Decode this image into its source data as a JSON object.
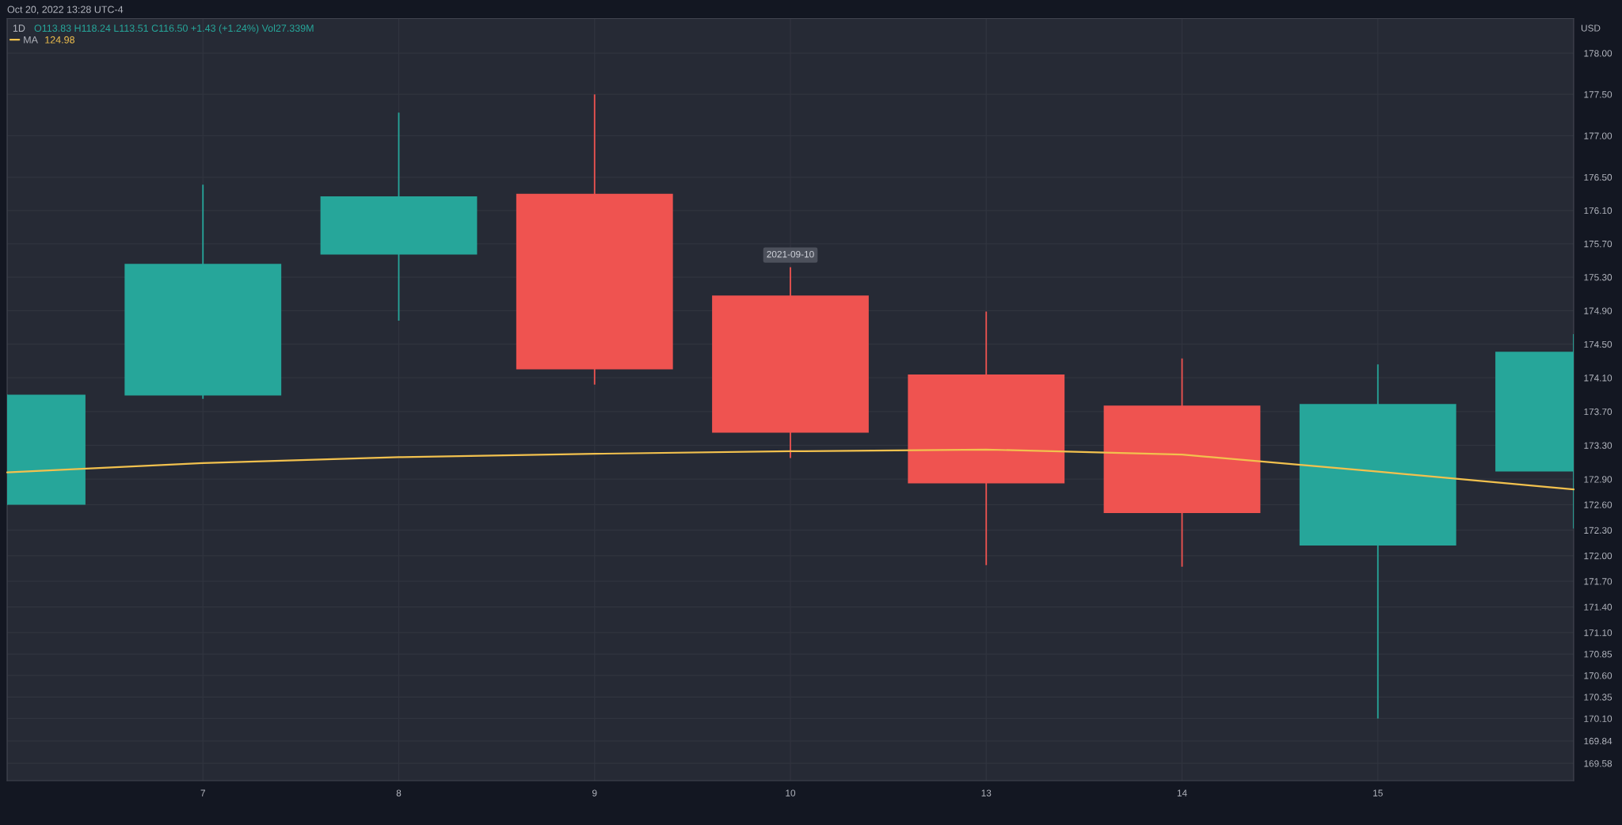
{
  "chart_data": {
    "type": "candlestick",
    "title": "1D",
    "subtitle": "O113.83 H118.24 L113.51 C116.50 +1.43 (+1.24%) Vol27.339M",
    "ylabel": "USD",
    "categories": [
      null,
      "7",
      "8",
      "9",
      "10",
      "13",
      "14",
      "15",
      null
    ],
    "ohlc": [
      [
        172.6,
        173.9,
        172.6,
        173.9
      ],
      [
        173.89,
        176.41,
        173.85,
        175.46
      ],
      [
        175.57,
        177.28,
        174.78,
        176.27
      ],
      [
        176.3,
        177.5,
        174.02,
        174.2
      ],
      [
        175.08,
        175.42,
        173.15,
        173.45
      ],
      [
        174.14,
        174.89,
        171.89,
        172.85
      ],
      [
        173.77,
        174.33,
        171.87,
        172.5
      ],
      [
        172.12,
        174.26,
        170.1,
        173.79
      ],
      [
        172.99,
        174.62,
        172.32,
        174.41
      ]
    ],
    "colors": [
      "#26a69a",
      "#26a69a",
      "#26a69a",
      "#ef5350",
      "#ef5350",
      "#ef5350",
      "#ef5350",
      "#26a69a",
      "#26a69a"
    ],
    "series": [
      {
        "name": "MA",
        "type": "line",
        "color": "#f2c14e",
        "values": [
          172.98,
          173.09,
          173.16,
          173.2,
          173.23,
          173.25,
          173.19,
          172.99,
          172.78
        ]
      }
    ],
    "ylim": [
      169.38,
      178.42
    ],
    "yticks": [
      {
        "value": 169.58,
        "label": "169.58"
      },
      {
        "value": 169.84,
        "label": "169.84"
      },
      {
        "value": 170.1,
        "label": "170.10"
      },
      {
        "value": 170.35,
        "label": "170.35"
      },
      {
        "value": 170.6,
        "label": "170.60"
      },
      {
        "value": 170.85,
        "label": "170.85"
      },
      {
        "value": 171.1,
        "label": "171.10"
      },
      {
        "value": 171.4,
        "label": "171.40"
      },
      {
        "value": 171.7,
        "label": "171.70"
      },
      {
        "value": 172.0,
        "label": "172.00"
      },
      {
        "value": 172.3,
        "label": "172.30"
      },
      {
        "value": 172.6,
        "label": "172.60"
      },
      {
        "value": 172.9,
        "label": "172.90"
      },
      {
        "value": 173.3,
        "label": "173.30"
      },
      {
        "value": 173.7,
        "label": "173.70"
      },
      {
        "value": 174.1,
        "label": "174.10"
      },
      {
        "value": 174.5,
        "label": "174.50"
      },
      {
        "value": 174.9,
        "label": "174.90"
      },
      {
        "value": 175.3,
        "label": "175.30"
      },
      {
        "value": 175.7,
        "label": "175.70"
      },
      {
        "value": 176.1,
        "label": "176.10"
      },
      {
        "value": 176.5,
        "label": "176.50"
      },
      {
        "value": 177.0,
        "label": "177.00"
      },
      {
        "value": 177.5,
        "label": "177.50"
      },
      {
        "value": 178.0,
        "label": "178.00"
      }
    ],
    "log": true,
    "grid": true,
    "legend": "top left",
    "annotations": [
      "Oct 20, 2022 13:28 UTC-4",
      "124.98",
      {
        "text": "2021-09-10",
        "x": "10",
        "y": 175.42
      }
    ]
  }
}
